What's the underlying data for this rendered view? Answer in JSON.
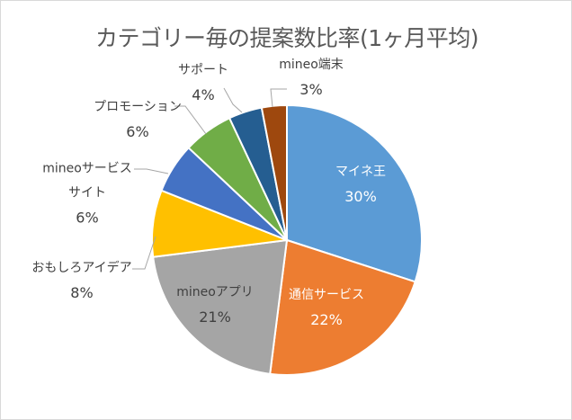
{
  "chart_data": {
    "type": "pie",
    "title": "カテゴリー毎の提案数比率(1ヶ月平均)",
    "start_angle": "12 o'clock, clockwise",
    "slices": [
      {
        "label": "マイネ王",
        "value": 30,
        "pct_label": "30%",
        "color": "#5B9BD5"
      },
      {
        "label": "通信サービス",
        "value": 22,
        "pct_label": "22%",
        "color": "#ED7D31"
      },
      {
        "label": "mineoアプリ",
        "value": 21,
        "pct_label": "21%",
        "color": "#A5A5A5"
      },
      {
        "label": "おもしろアイデア",
        "value": 8,
        "pct_label": "8%",
        "color": "#FFC000"
      },
      {
        "label": "mineoサービスサイト",
        "value": 6,
        "pct_label": "6%",
        "color": "#4472C4"
      },
      {
        "label": "プロモーション",
        "value": 6,
        "pct_label": "6%",
        "color": "#70AD47"
      },
      {
        "label": "サポート",
        "value": 4,
        "pct_label": "4%",
        "color": "#255E91"
      },
      {
        "label": "mineo端末",
        "value": 3,
        "pct_label": "3%",
        "color": "#9E480E"
      }
    ],
    "legend": "none"
  }
}
